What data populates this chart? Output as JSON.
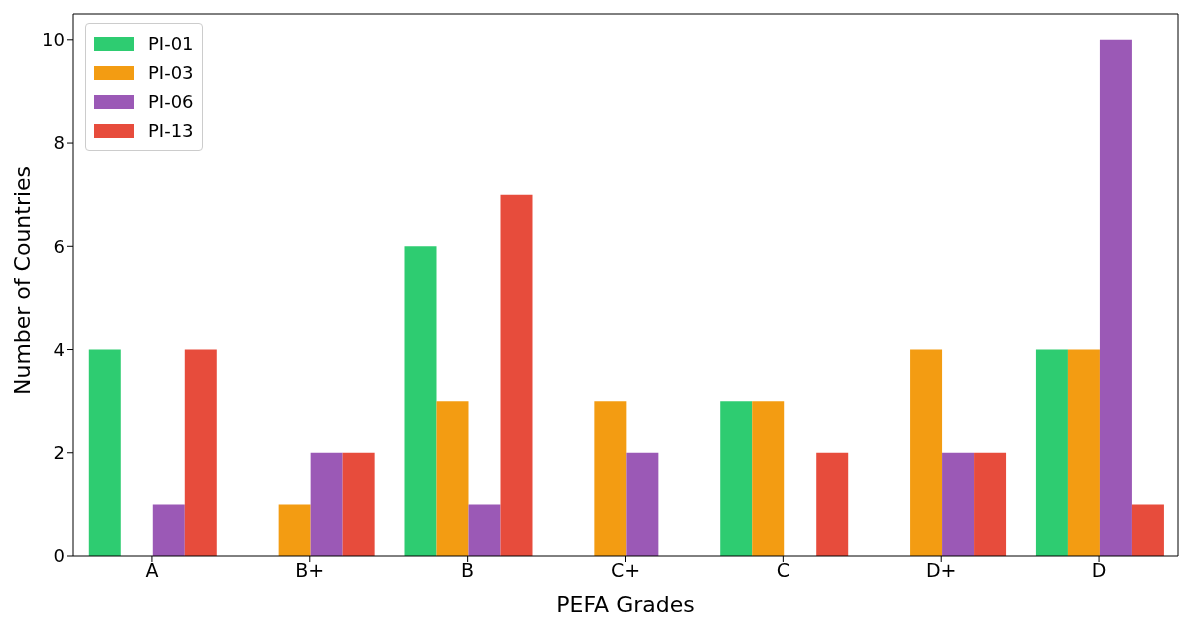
{
  "chart_data": {
    "type": "bar",
    "xlabel": "PEFA Grades",
    "ylabel": "Number of Countries",
    "categories": [
      "A",
      "B+",
      "B",
      "C+",
      "C",
      "D+",
      "D"
    ],
    "series": [
      {
        "name": "PI-01",
        "color": "#2ecc71",
        "values": [
          4,
          0,
          6,
          0,
          3,
          0,
          4
        ]
      },
      {
        "name": "PI-03",
        "color": "#f39c12",
        "values": [
          0,
          1,
          3,
          3,
          3,
          4,
          4
        ]
      },
      {
        "name": "PI-06",
        "color": "#9b59b6",
        "values": [
          1,
          2,
          1,
          2,
          0,
          2,
          10
        ]
      },
      {
        "name": "PI-13",
        "color": "#e74c3c",
        "values": [
          4,
          2,
          7,
          0,
          2,
          2,
          1
        ]
      }
    ],
    "ylim": [
      0,
      10.5
    ],
    "yticks": [
      0,
      2,
      4,
      6,
      8,
      10
    ],
    "grid": false,
    "legend": "top left"
  }
}
